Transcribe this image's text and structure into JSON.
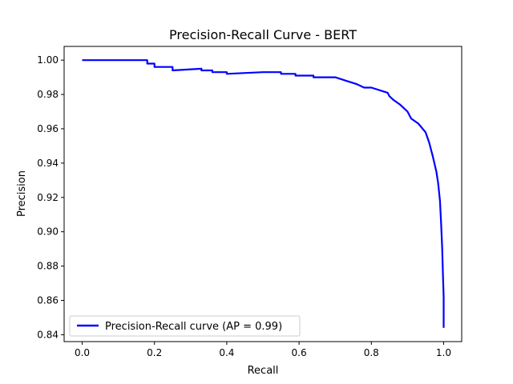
{
  "chart_data": {
    "type": "line",
    "title": "Precision-Recall Curve - BERT",
    "xlabel": "Recall",
    "ylabel": "Precision",
    "xlim": [
      -0.05,
      1.05
    ],
    "ylim": [
      0.836,
      1.008
    ],
    "xticks": [
      0.0,
      0.2,
      0.4,
      0.6,
      0.8,
      1.0
    ],
    "xtick_labels": [
      "0.0",
      "0.2",
      "0.4",
      "0.6",
      "0.8",
      "1.0"
    ],
    "yticks": [
      0.84,
      0.86,
      0.88,
      0.9,
      0.92,
      0.94,
      0.96,
      0.98,
      1.0
    ],
    "ytick_labels": [
      "0.84",
      "0.86",
      "0.88",
      "0.90",
      "0.92",
      "0.94",
      "0.96",
      "0.98",
      "1.00"
    ],
    "grid": false,
    "legend_position": "lower-left",
    "series": [
      {
        "name": "Precision-Recall curve (AP = 0.99)",
        "color": "#0000ff",
        "x": [
          0.0,
          0.18,
          0.18,
          0.2,
          0.2,
          0.25,
          0.25,
          0.33,
          0.33,
          0.36,
          0.36,
          0.4,
          0.4,
          0.5,
          0.5,
          0.55,
          0.55,
          0.59,
          0.59,
          0.64,
          0.64,
          0.67,
          0.7,
          0.73,
          0.76,
          0.78,
          0.8,
          0.83,
          0.845,
          0.85,
          0.86,
          0.88,
          0.9,
          0.91,
          0.93,
          0.95,
          0.96,
          0.97,
          0.98,
          0.985,
          0.99,
          0.993,
          0.996,
          0.998,
          1.0,
          1.0
        ],
        "y": [
          1.0,
          1.0,
          0.998,
          0.998,
          0.996,
          0.996,
          0.994,
          0.995,
          0.994,
          0.994,
          0.993,
          0.993,
          0.992,
          0.993,
          0.993,
          0.993,
          0.992,
          0.992,
          0.991,
          0.991,
          0.99,
          0.99,
          0.99,
          0.988,
          0.986,
          0.984,
          0.984,
          0.982,
          0.981,
          0.979,
          0.977,
          0.974,
          0.97,
          0.966,
          0.963,
          0.958,
          0.952,
          0.944,
          0.935,
          0.928,
          0.918,
          0.905,
          0.89,
          0.875,
          0.862,
          0.844
        ]
      }
    ]
  }
}
